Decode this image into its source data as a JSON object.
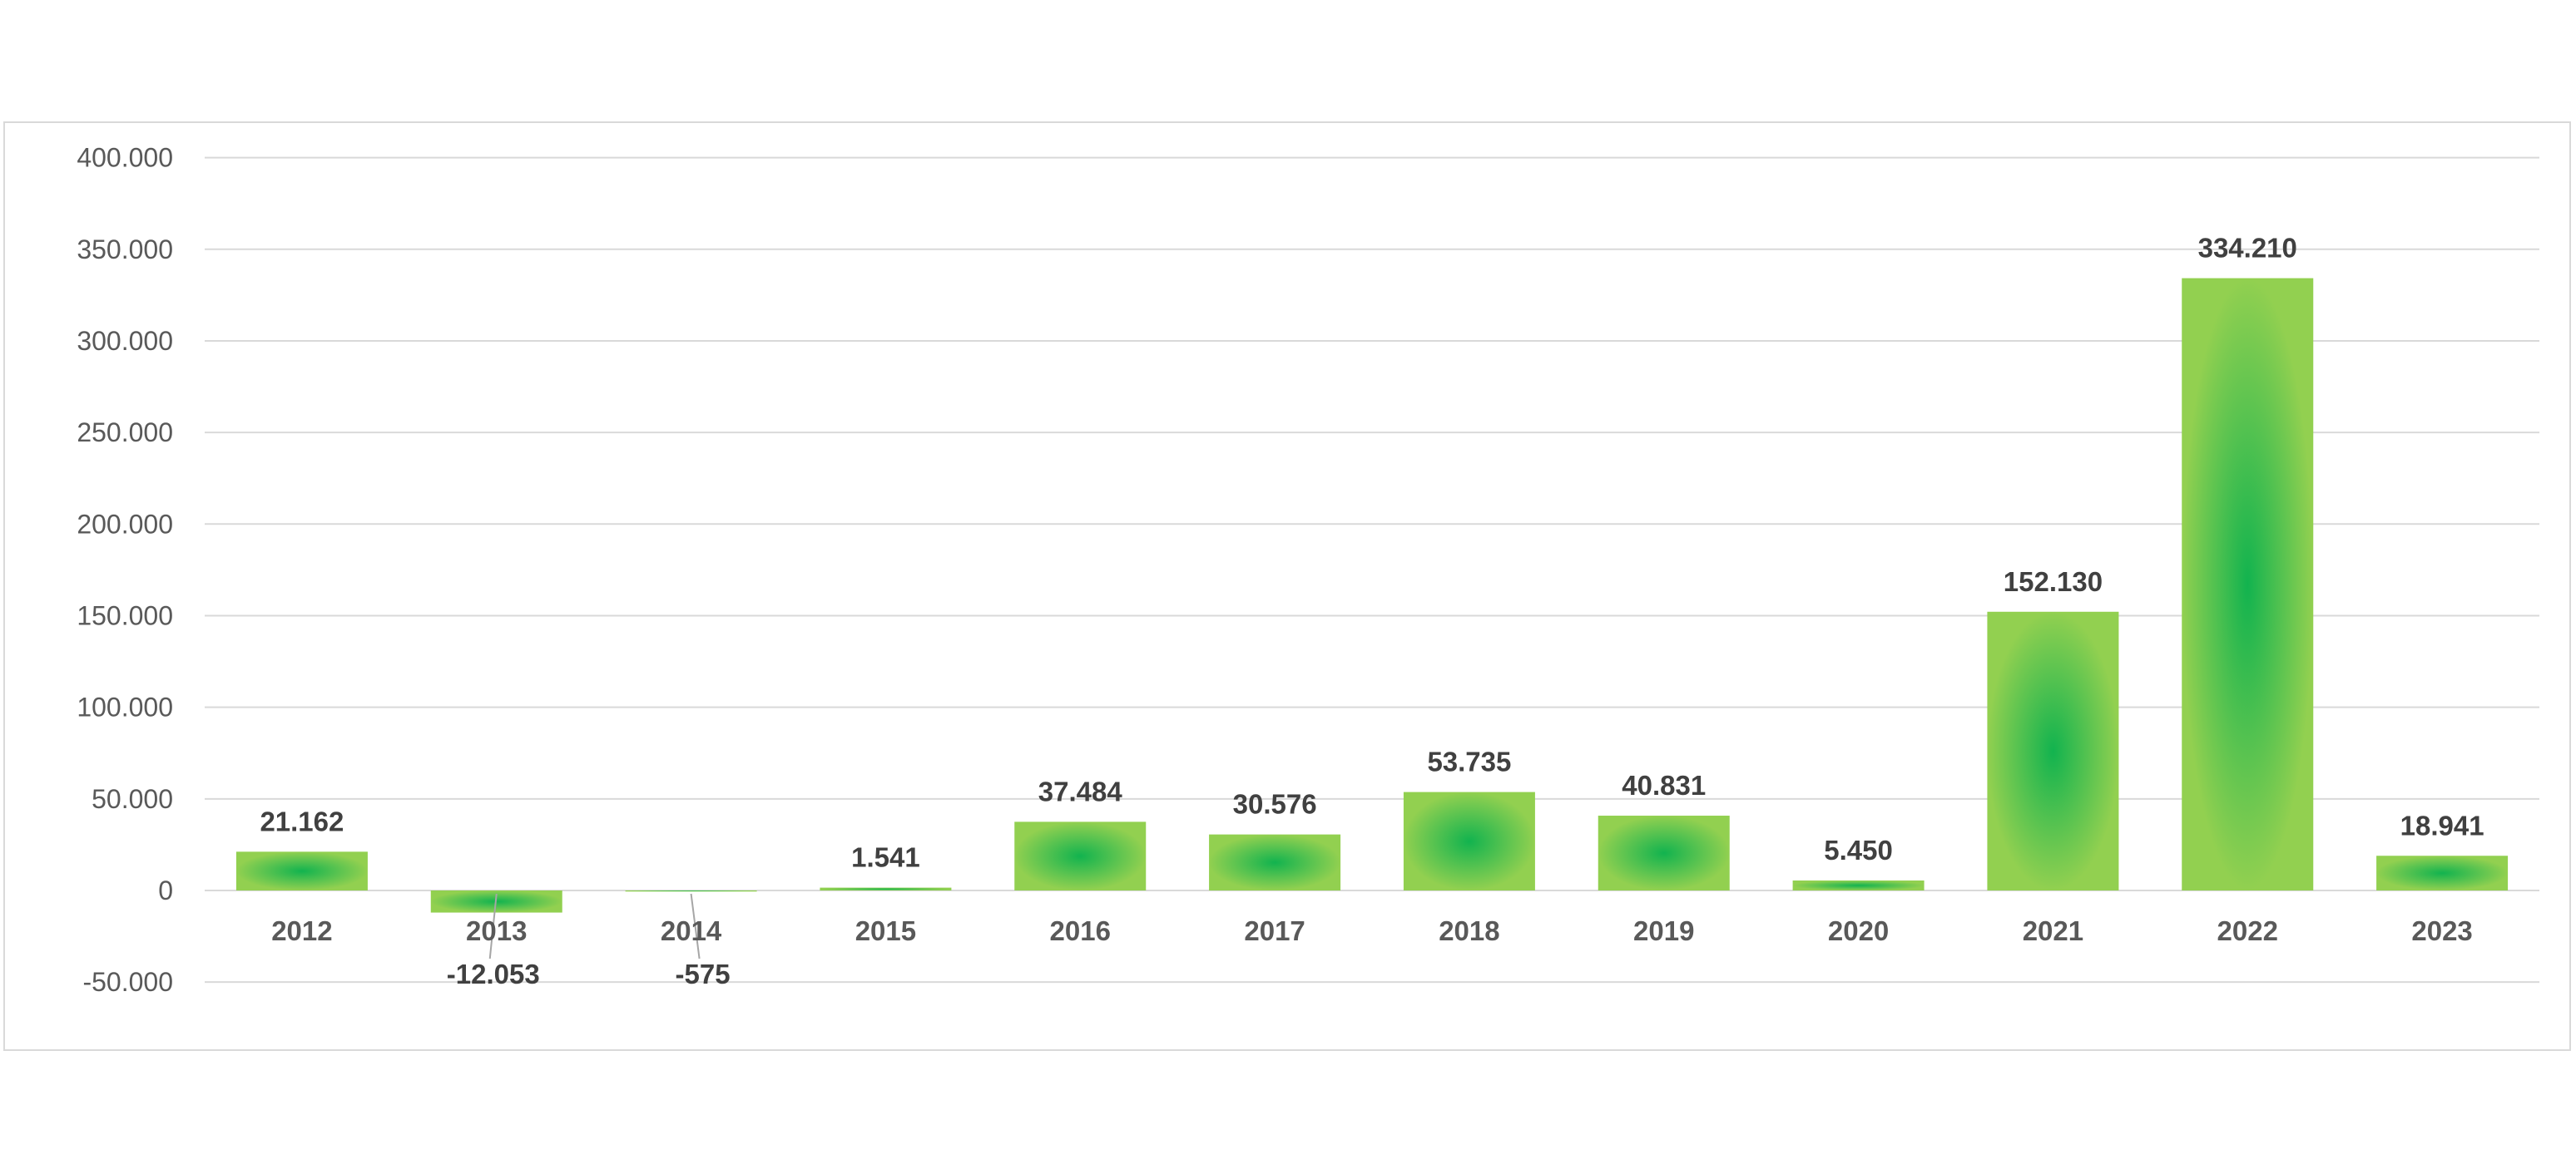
{
  "chart_data": {
    "type": "bar",
    "categories": [
      "2012",
      "2013",
      "2014",
      "2015",
      "2016",
      "2017",
      "2018",
      "2019",
      "2020",
      "2021",
      "2022",
      "2023"
    ],
    "values": [
      21162,
      -12053,
      -575,
      1541,
      37484,
      30576,
      53735,
      40831,
      5450,
      152130,
      334210,
      18941
    ],
    "data_labels": [
      "21.162",
      "-12.053",
      "-575",
      "1.541",
      "37.484",
      "30.576",
      "53.735",
      "40.831",
      "5.450",
      "152.130",
      "334.210",
      "18.941"
    ],
    "y_ticks": [
      -50000,
      0,
      50000,
      100000,
      150000,
      200000,
      250000,
      300000,
      350000,
      400000
    ],
    "y_tick_labels": [
      "-50.000",
      "0",
      "50.000",
      "100.000",
      "150.000",
      "200.000",
      "250.000",
      "300.000",
      "350.000",
      "400.000"
    ],
    "ylim": [
      -50000,
      400000
    ],
    "title": "",
    "xlabel": "",
    "ylabel": "",
    "grid": true,
    "legend": "none",
    "colors": {
      "bar_center": "#12b34f",
      "bar_edge": "#92d050",
      "gridline": "#d9d9d9",
      "frame": "#d9d9d9",
      "tick_text": "#595959",
      "label_text": "#404040",
      "leader_line": "#a6a6a6"
    }
  }
}
